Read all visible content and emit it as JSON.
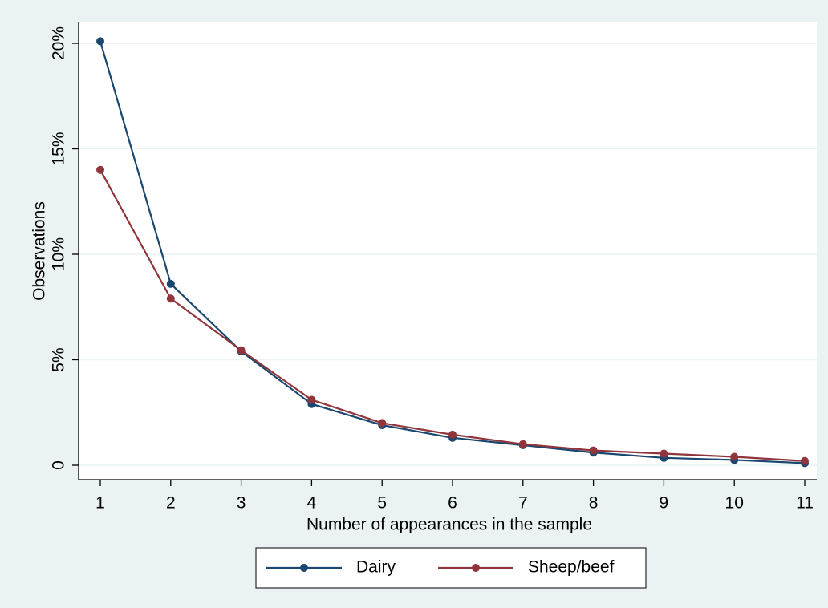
{
  "chart_data": {
    "type": "line",
    "x": [
      1,
      2,
      3,
      4,
      5,
      6,
      7,
      8,
      9,
      10,
      11
    ],
    "xlim": [
      1,
      11
    ],
    "xticks": [
      1,
      2,
      3,
      4,
      5,
      6,
      7,
      8,
      9,
      10,
      11
    ],
    "ylim": [
      0,
      20
    ],
    "yticks": [
      0,
      {
        "value": 5,
        "label": "5%"
      },
      {
        "value": 10,
        "label": "10%"
      },
      {
        "value": 15,
        "label": "15%"
      },
      {
        "value": 20,
        "label": "20%"
      }
    ],
    "xlabel": "Number of appearances in the sample",
    "ylabel": "Observations",
    "grid": true,
    "legend": "bottom",
    "series": [
      {
        "name": "Dairy",
        "color": "#1a476f",
        "values": [
          20.1,
          8.6,
          5.4,
          2.9,
          1.9,
          1.3,
          0.95,
          0.6,
          0.35,
          0.25,
          0.1
        ]
      },
      {
        "name": "Sheep/beef",
        "color": "#90353b",
        "values": [
          14.0,
          7.9,
          5.45,
          3.1,
          2.0,
          1.45,
          1.0,
          0.7,
          0.55,
          0.4,
          0.2
        ]
      }
    ]
  }
}
